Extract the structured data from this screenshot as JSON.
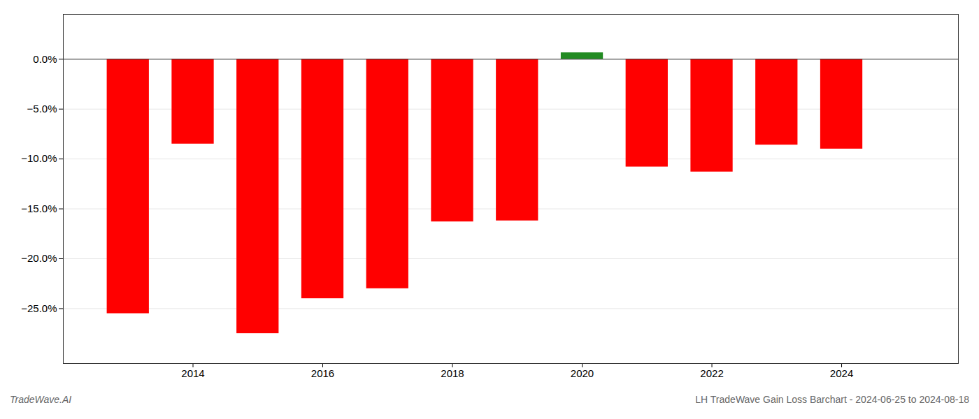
{
  "chart_data": {
    "type": "bar",
    "x": [
      2013,
      2014,
      2015,
      2016,
      2017,
      2018,
      2019,
      2020,
      2021,
      2022,
      2023,
      2024
    ],
    "values": [
      -25.5,
      -8.5,
      -27.5,
      -24.0,
      -23.0,
      -16.3,
      -16.2,
      0.65,
      -10.8,
      -11.3,
      -8.6,
      -9.0
    ],
    "colors": [
      "#ff0000",
      "#ff0000",
      "#ff0000",
      "#ff0000",
      "#ff0000",
      "#ff0000",
      "#ff0000",
      "#228B22",
      "#ff0000",
      "#ff0000",
      "#ff0000",
      "#ff0000"
    ],
    "xlim": [
      2012.0,
      2025.8
    ],
    "xticks": [
      2014,
      2016,
      2018,
      2020,
      2022,
      2024
    ],
    "ylim": [
      -30.5,
      4.5
    ],
    "yticks": [
      {
        "value": 0.0,
        "label": "0.0%"
      },
      {
        "value": -5.0,
        "label": "−5.0%"
      },
      {
        "value": -10.0,
        "label": "−10.0%"
      },
      {
        "value": -15.0,
        "label": "−15.0%"
      },
      {
        "value": -20.0,
        "label": "−20.0%"
      },
      {
        "value": -25.0,
        "label": "−25.0%"
      }
    ],
    "grid": true,
    "annotations": [
      "TradeWave.AI",
      "LH TradeWave Gain Loss Barchart - 2024-06-25 to 2024-08-18"
    ]
  }
}
